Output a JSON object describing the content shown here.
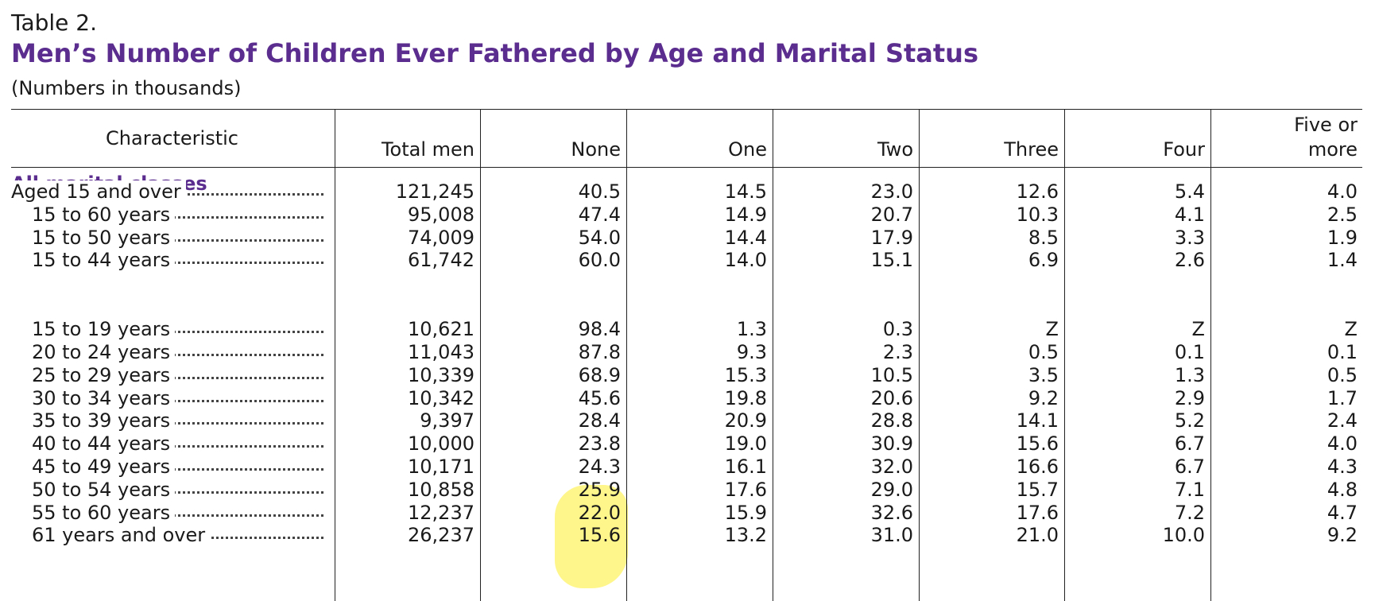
{
  "table_label": "Table 2.",
  "title": "Men’s Number of Children Ever Fathered by Age and Marital Status",
  "note": "(Numbers in thousands)",
  "headers": {
    "characteristic": "Characteristic",
    "total": "Total men",
    "none": "None",
    "one": "One",
    "two": "Two",
    "three": "Three",
    "four": "Four",
    "five_line1": "Five or",
    "five_line2": "more"
  },
  "section": "All marital classes",
  "rows": [
    {
      "label": "Aged 15 and over",
      "values": [
        "121,245",
        "40.5",
        "14.5",
        "23.0",
        "12.6",
        "5.4",
        "4.0"
      ]
    },
    {
      "label": "15 to 60 years",
      "values": [
        "95,008",
        "47.4",
        "14.9",
        "20.7",
        "10.3",
        "4.1",
        "2.5"
      ]
    },
    {
      "label": "15 to 50 years",
      "values": [
        "74,009",
        "54.0",
        "14.4",
        "17.9",
        "8.5",
        "3.3",
        "1.9"
      ]
    },
    {
      "label": "15 to 44 years",
      "values": [
        "61,742",
        "60.0",
        "14.0",
        "15.1",
        "6.9",
        "2.6",
        "1.4"
      ]
    },
    {
      "label": "15 to 19 years",
      "values": [
        "10,621",
        "98.4",
        "1.3",
        "0.3",
        "Z",
        "Z",
        "Z"
      ]
    },
    {
      "label": "20 to 24 years",
      "values": [
        "11,043",
        "87.8",
        "9.3",
        "2.3",
        "0.5",
        "0.1",
        "0.1"
      ]
    },
    {
      "label": "25 to 29 years",
      "values": [
        "10,339",
        "68.9",
        "15.3",
        "10.5",
        "3.5",
        "1.3",
        "0.5"
      ]
    },
    {
      "label": "30 to 34 years",
      "values": [
        "10,342",
        "45.6",
        "19.8",
        "20.6",
        "9.2",
        "2.9",
        "1.7"
      ]
    },
    {
      "label": "35 to 39 years",
      "values": [
        "9,397",
        "28.4",
        "20.9",
        "28.8",
        "14.1",
        "5.2",
        "2.4"
      ]
    },
    {
      "label": "40 to 44 years",
      "values": [
        "10,000",
        "23.8",
        "19.0",
        "30.9",
        "15.6",
        "6.7",
        "4.0"
      ]
    },
    {
      "label": "45 to 49 years",
      "values": [
        "10,171",
        "24.3",
        "16.1",
        "32.0",
        "16.6",
        "6.7",
        "4.3"
      ]
    },
    {
      "label": "50 to 54 years",
      "values": [
        "10,858",
        "25.9",
        "17.6",
        "29.0",
        "15.7",
        "7.1",
        "4.8"
      ]
    },
    {
      "label": "55 to 60 years",
      "values": [
        "12,237",
        "22.0",
        "15.9",
        "32.6",
        "17.6",
        "7.2",
        "4.7"
      ]
    },
    {
      "label": "61 years and over",
      "values": [
        "26,237",
        "15.6",
        "13.2",
        "31.0",
        "21.0",
        "10.0",
        "9.2"
      ]
    }
  ],
  "colors": {
    "title": "#5b2d8e",
    "highlight": "#fff364"
  }
}
